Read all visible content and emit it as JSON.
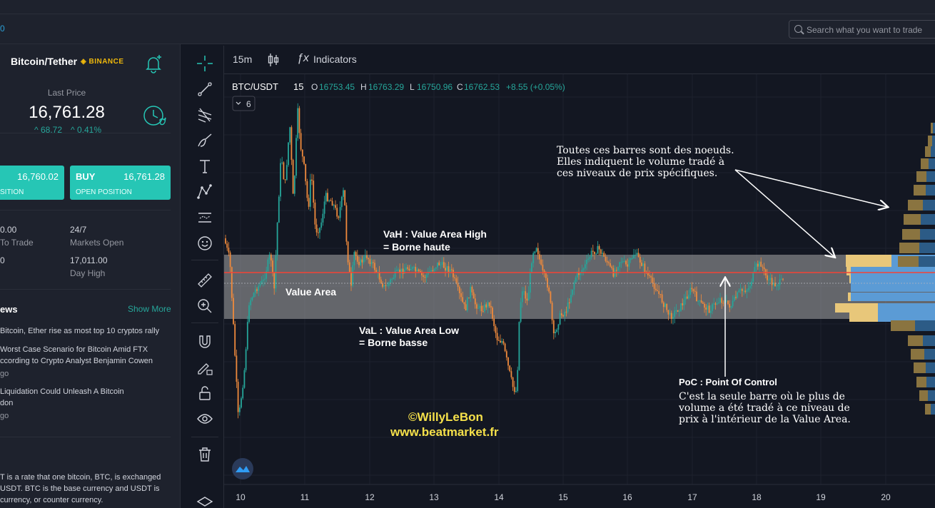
{
  "header": {
    "corner_text": "0",
    "search_placeholder": "Search what you want to trade"
  },
  "symbol": {
    "name": "Bitcoin/Tether",
    "exchange": "BINANCE",
    "last_price_label": "Last Price",
    "last_price": "16,761.28",
    "change": "^ 68.72",
    "change_pct": "^ 0.41%"
  },
  "trade": {
    "sell_price": "16,760.02",
    "sell_sub": "SITION",
    "buy_label": "BUY",
    "buy_price": "16,761.28",
    "buy_sub": "OPEN POSITION"
  },
  "stats": {
    "s1_value": "0.00",
    "s1_label": "To Trade",
    "s2_value": "24/7",
    "s2_label": "Markets Open",
    "s3_value": "0",
    "s4_value": "17,011.00",
    "s4_label": "Day High"
  },
  "news": {
    "title": "ews",
    "show_more": "Show More",
    "items": [
      {
        "line1": "Bitcoin, Ether rise as most top 10 cryptos rally",
        "line2": "",
        "ago": ""
      },
      {
        "line1": "Worst Case Scenario for Bitcoin Amid FTX",
        "line2": "ccording to Crypto Analyst Benjamin Cowen",
        "ago": "go"
      },
      {
        "line1": "Liquidation Could Unleash A Bitcoin",
        "line2": "don",
        "ago": "go"
      }
    ]
  },
  "about": {
    "line1": "T is a rate that one bitcoin, BTC, is exchanged",
    "line2": "USDT. BTC is the base currency and USDT is",
    "line3": "currency, or counter currency."
  },
  "chart_header": {
    "interval": "15m",
    "indicators_label": "Indicators"
  },
  "legend": {
    "pair": "BTC/USDT",
    "tf": "15",
    "o": "16753.45",
    "h": "16763.29",
    "l": "16750.96",
    "c": "16762.53",
    "chg": "+8.55 (+0.05%)",
    "collapse": "6"
  },
  "annotations": {
    "vah_1": "VaH : Value Area High",
    "vah_2": "= Borne haute",
    "value_area": "Value Area",
    "val_1": "VaL : Value Area Low",
    "val_2": "= Borne basse",
    "nodes_1": "Toutes ces barres sont des noeuds.",
    "nodes_2": "Elles indiquent le volume tradé à",
    "nodes_3": "ces niveaux de prix spécifiques.",
    "poc_title": "PoC : Point Of Control",
    "poc_1": "C'est la seule barre où le plus de",
    "poc_2": "volume a été tradé à ce niveau de",
    "poc_3": "prix à l'intérieur de la Value Area.",
    "watermark_1": "©WillyLeBon",
    "watermark_2": "www.beatmarket.fr"
  },
  "chart_data": {
    "type": "candlestick",
    "pair": "BTC/USDT",
    "x_ticks": [
      "10",
      "11",
      "12",
      "13",
      "14",
      "15",
      "16",
      "17",
      "18",
      "19",
      "20"
    ],
    "ohlc_last": {
      "open": 16753.45,
      "high": 16763.29,
      "low": 16750.96,
      "close": 16762.53
    },
    "colors": {
      "up": "#26a69a",
      "down": "#ef8a3c",
      "value_area": "#a7a7a7",
      "poc_line": "#f44336",
      "profile_up": "#e8c77a",
      "profile_down": "#5b9bd5",
      "annotation": "#ffffff",
      "watermark": "#f5e04a"
    }
  }
}
